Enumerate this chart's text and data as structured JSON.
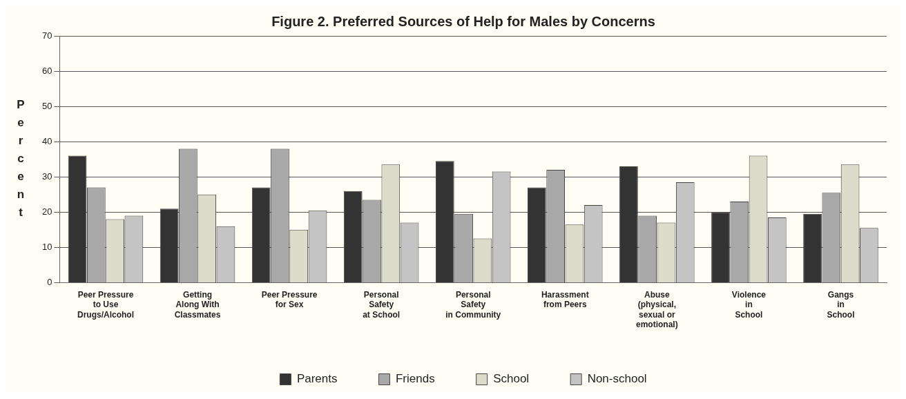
{
  "chart_data": {
    "type": "bar",
    "title": "Figure 2. Preferred Sources of Help for Males by Concerns",
    "ylabel": "Percent",
    "categories": [
      "Peer Pressure\nto Use\nDrugs/Alcohol",
      "Getting\nAlong With\nClassmates",
      "Peer Pressure\nfor Sex",
      "Personal\nSafety\nat School",
      "Personal\nSafety\nin Community",
      "Harassment\nfrom Peers",
      "Abuse\n(physical,\nsexual or\nemotional)",
      "Violence\nin\nSchool",
      "Gangs\nin\nSchool"
    ],
    "series": [
      {
        "name": "Parents",
        "color": "#333333",
        "values": [
          36,
          21,
          27,
          26,
          34.5,
          27,
          33,
          20,
          19.5
        ]
      },
      {
        "name": "Friends",
        "color": "#a8a8a8",
        "values": [
          27,
          38,
          38,
          23.5,
          19.5,
          32,
          19,
          23,
          25.5
        ]
      },
      {
        "name": "School",
        "color": "#dcdccb",
        "values": [
          18,
          25,
          15,
          33.5,
          12.5,
          16.5,
          17,
          36,
          33.5
        ]
      },
      {
        "name": "Non-school",
        "color": "#c4c4c4",
        "values": [
          19,
          16,
          20.5,
          17,
          31.5,
          22,
          28.5,
          18.5,
          15.5
        ]
      }
    ],
    "ylim": [
      0,
      70
    ],
    "yticks": [
      0,
      10,
      20,
      30,
      40,
      50,
      60,
      70
    ],
    "grid": "y",
    "legend": "bottom"
  }
}
